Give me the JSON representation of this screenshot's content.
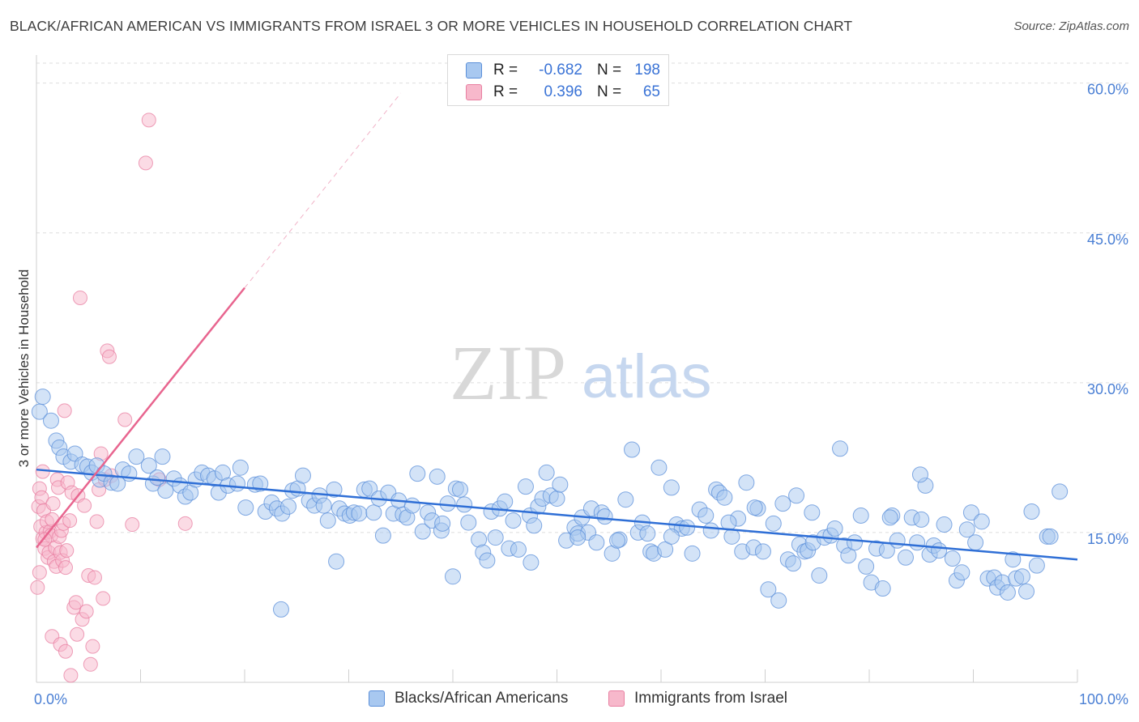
{
  "title": "BLACK/AFRICAN AMERICAN VS IMMIGRANTS FROM ISRAEL 3 OR MORE VEHICLES IN HOUSEHOLD CORRELATION CHART",
  "source": "Source: ZipAtlas.com",
  "watermark": {
    "zip": "ZIP",
    "atlas": "atlas"
  },
  "colors": {
    "blue_fill": "#a8c8f0",
    "blue_stroke": "#5b8fd9",
    "blue_line": "#2f6fd6",
    "pink_fill": "#f7b8cb",
    "pink_stroke": "#e87fa1",
    "pink_line": "#e8658f",
    "tick_label": "#4a7fd4",
    "grid": "#dddddd"
  },
  "legend": {
    "rows": [
      {
        "r_label": "R =",
        "r_value": "-0.682",
        "n_label": "N =",
        "n_value": "198"
      },
      {
        "r_label": "R =",
        "r_value": "0.396",
        "n_label": "N =",
        "n_value": "65"
      }
    ]
  },
  "chart_data": {
    "type": "scatter",
    "title": "BLACK/AFRICAN AMERICAN VS IMMIGRANTS FROM ISRAEL 3 OR MORE VEHICLES IN HOUSEHOLD CORRELATION CHART",
    "xlabel": "",
    "ylabel": "3 or more Vehicles in Household",
    "xlim": [
      0,
      100
    ],
    "ylim": [
      0,
      62
    ],
    "x_tick_labels": [
      "0.0%",
      "100.0%"
    ],
    "y_ticks": [
      15,
      30,
      45,
      60
    ],
    "y_tick_labels": [
      "15.0%",
      "30.0%",
      "45.0%",
      "60.0%"
    ],
    "grid": true,
    "legend_position": "bottom",
    "series": [
      {
        "name": "Blacks/African Americans",
        "trend": {
          "x": [
            0,
            100
          ],
          "y": [
            21.3,
            12.3
          ]
        },
        "points": [
          [
            0.3,
            27.1
          ],
          [
            0.6,
            28.6
          ],
          [
            1.4,
            26.2
          ],
          [
            1.9,
            24.2
          ],
          [
            2.2,
            23.5
          ],
          [
            2.6,
            22.6
          ],
          [
            3.3,
            22.1
          ],
          [
            3.7,
            22.9
          ],
          [
            4.4,
            21.8
          ],
          [
            4.9,
            21.6
          ],
          [
            5.3,
            21.0
          ],
          [
            5.8,
            21.7
          ],
          [
            6.1,
            20.3
          ],
          [
            6.5,
            20.9
          ],
          [
            7.2,
            20.0
          ],
          [
            7.8,
            19.9
          ],
          [
            8.3,
            21.3
          ],
          [
            8.9,
            20.9
          ],
          [
            9.6,
            22.6
          ],
          [
            10.8,
            21.7
          ],
          [
            11.2,
            19.9
          ],
          [
            12.1,
            22.6
          ],
          [
            11.6,
            20.5
          ],
          [
            12.4,
            19.2
          ],
          [
            13.2,
            20.4
          ],
          [
            13.8,
            19.7
          ],
          [
            14.3,
            18.6
          ],
          [
            14.8,
            19.0
          ],
          [
            15.3,
            20.3
          ],
          [
            15.9,
            21.0
          ],
          [
            16.5,
            20.7
          ],
          [
            17.1,
            20.4
          ],
          [
            17.5,
            19.0
          ],
          [
            17.9,
            21.0
          ],
          [
            18.4,
            19.7
          ],
          [
            19.3,
            19.9
          ],
          [
            19.6,
            21.5
          ],
          [
            20.1,
            17.5
          ],
          [
            21.0,
            19.8
          ],
          [
            21.5,
            19.9
          ],
          [
            22.0,
            17.1
          ],
          [
            22.6,
            18.0
          ],
          [
            23.1,
            17.4
          ],
          [
            23.6,
            16.9
          ],
          [
            24.2,
            17.6
          ],
          [
            24.6,
            19.2
          ],
          [
            25.1,
            19.4
          ],
          [
            25.6,
            20.7
          ],
          [
            26.2,
            18.2
          ],
          [
            26.7,
            17.7
          ],
          [
            27.2,
            18.7
          ],
          [
            27.6,
            17.7
          ],
          [
            28.0,
            16.2
          ],
          [
            28.6,
            19.3
          ],
          [
            29.1,
            17.4
          ],
          [
            29.6,
            16.9
          ],
          [
            30.1,
            16.7
          ],
          [
            30.5,
            17.0
          ],
          [
            31.0,
            16.9
          ],
          [
            31.5,
            19.3
          ],
          [
            32.0,
            19.4
          ],
          [
            32.4,
            17.0
          ],
          [
            32.9,
            18.4
          ],
          [
            33.3,
            14.7
          ],
          [
            33.8,
            19.0
          ],
          [
            34.3,
            16.9
          ],
          [
            34.8,
            18.2
          ],
          [
            35.2,
            16.8
          ],
          [
            35.6,
            16.5
          ],
          [
            36.1,
            17.7
          ],
          [
            36.6,
            20.9
          ],
          [
            37.1,
            15.1
          ],
          [
            37.6,
            17.0
          ],
          [
            38.0,
            16.2
          ],
          [
            38.5,
            20.6
          ],
          [
            38.9,
            15.2
          ],
          [
            39.5,
            17.9
          ],
          [
            40.3,
            19.4
          ],
          [
            40.7,
            19.3
          ],
          [
            41.1,
            17.8
          ],
          [
            41.5,
            16.0
          ],
          [
            42.5,
            14.3
          ],
          [
            42.9,
            13.0
          ],
          [
            43.3,
            12.2
          ],
          [
            43.7,
            17.1
          ],
          [
            44.1,
            14.5
          ],
          [
            44.5,
            17.4
          ],
          [
            45.0,
            18.1
          ],
          [
            45.4,
            13.4
          ],
          [
            45.8,
            16.2
          ],
          [
            46.3,
            13.3
          ],
          [
            47.0,
            19.6
          ],
          [
            47.4,
            16.7
          ],
          [
            47.8,
            15.7
          ],
          [
            48.2,
            17.6
          ],
          [
            48.6,
            18.4
          ],
          [
            49.0,
            21.0
          ],
          [
            49.4,
            18.7
          ],
          [
            50.0,
            18.4
          ],
          [
            50.3,
            19.8
          ],
          [
            50.9,
            14.2
          ],
          [
            51.7,
            15.5
          ],
          [
            52.0,
            14.9
          ],
          [
            52.4,
            16.5
          ],
          [
            53.0,
            15.0
          ],
          [
            53.3,
            17.4
          ],
          [
            53.8,
            14.0
          ],
          [
            54.3,
            17.0
          ],
          [
            54.6,
            16.6
          ],
          [
            55.3,
            12.9
          ],
          [
            56.0,
            14.3
          ],
          [
            56.6,
            18.3
          ],
          [
            57.2,
            23.3
          ],
          [
            57.8,
            15.0
          ],
          [
            58.2,
            16.0
          ],
          [
            58.7,
            14.9
          ],
          [
            59.0,
            13.1
          ],
          [
            59.3,
            12.9
          ],
          [
            59.8,
            21.5
          ],
          [
            60.4,
            13.3
          ],
          [
            61.0,
            19.5
          ],
          [
            61.5,
            15.8
          ],
          [
            62.0,
            15.4
          ],
          [
            62.5,
            15.5
          ],
          [
            63.0,
            12.9
          ],
          [
            63.7,
            17.3
          ],
          [
            64.3,
            16.7
          ],
          [
            64.8,
            15.2
          ],
          [
            65.3,
            19.3
          ],
          [
            65.6,
            19.0
          ],
          [
            66.1,
            18.5
          ],
          [
            66.8,
            14.6
          ],
          [
            67.4,
            16.4
          ],
          [
            67.8,
            13.1
          ],
          [
            68.2,
            20.0
          ],
          [
            68.9,
            13.5
          ],
          [
            69.3,
            17.4
          ],
          [
            69.8,
            13.1
          ],
          [
            70.3,
            9.3
          ],
          [
            70.8,
            15.9
          ],
          [
            71.3,
            8.2
          ],
          [
            71.7,
            17.9
          ],
          [
            72.2,
            12.3
          ],
          [
            72.7,
            11.9
          ],
          [
            73.3,
            13.8
          ],
          [
            73.8,
            13.1
          ],
          [
            74.1,
            13.2
          ],
          [
            74.6,
            14.0
          ],
          [
            75.2,
            10.7
          ],
          [
            75.7,
            14.5
          ],
          [
            76.3,
            14.7
          ],
          [
            76.7,
            15.4
          ],
          [
            77.2,
            23.4
          ],
          [
            77.6,
            13.7
          ],
          [
            78.0,
            12.7
          ],
          [
            78.6,
            14.0
          ],
          [
            79.2,
            16.7
          ],
          [
            79.7,
            11.6
          ],
          [
            80.2,
            10.0
          ],
          [
            80.7,
            13.4
          ],
          [
            81.3,
            9.4
          ],
          [
            81.7,
            13.2
          ],
          [
            82.2,
            16.7
          ],
          [
            82.7,
            14.2
          ],
          [
            83.5,
            12.5
          ],
          [
            84.1,
            16.5
          ],
          [
            84.6,
            14.0
          ],
          [
            85.0,
            16.3
          ],
          [
            85.4,
            19.7
          ],
          [
            85.8,
            12.8
          ],
          [
            86.2,
            13.7
          ],
          [
            86.7,
            13.2
          ],
          [
            87.2,
            15.8
          ],
          [
            88.0,
            12.4
          ],
          [
            88.4,
            10.2
          ],
          [
            88.9,
            11.0
          ],
          [
            89.4,
            15.3
          ],
          [
            89.8,
            17.0
          ],
          [
            90.2,
            14.0
          ],
          [
            90.8,
            16.1
          ],
          [
            91.4,
            10.4
          ],
          [
            92.0,
            10.5
          ],
          [
            92.3,
            9.5
          ],
          [
            92.8,
            10.0
          ],
          [
            93.3,
            9.0
          ],
          [
            93.8,
            12.3
          ],
          [
            94.1,
            10.4
          ],
          [
            94.7,
            10.6
          ],
          [
            95.1,
            9.1
          ],
          [
            95.6,
            17.1
          ],
          [
            96.1,
            11.7
          ],
          [
            97.1,
            14.6
          ],
          [
            97.4,
            14.6
          ],
          [
            98.3,
            19.1
          ],
          [
            84.9,
            20.8
          ],
          [
            82.0,
            16.5
          ],
          [
            73.0,
            18.7
          ],
          [
            74.5,
            17.0
          ],
          [
            69.0,
            17.5
          ],
          [
            66.5,
            16.0
          ],
          [
            61.0,
            14.6
          ],
          [
            52.0,
            14.5
          ],
          [
            47.5,
            12.0
          ],
          [
            39.0,
            15.9
          ],
          [
            23.5,
            7.3
          ],
          [
            28.8,
            12.1
          ],
          [
            40.0,
            10.6
          ],
          [
            55.8,
            14.2
          ]
        ]
      },
      {
        "name": "Immigrants from Israel",
        "trend": {
          "x": [
            0,
            20
          ],
          "y": [
            13.5,
            39.5
          ]
        },
        "trend_extended": {
          "x": [
            20,
            35
          ],
          "y": [
            39.5,
            59.0
          ]
        },
        "points": [
          [
            0.2,
            17.6
          ],
          [
            0.3,
            19.4
          ],
          [
            0.4,
            15.6
          ],
          [
            0.5,
            18.5
          ],
          [
            0.6,
            14.4
          ],
          [
            0.7,
            17.2
          ],
          [
            0.8,
            13.4
          ],
          [
            0.9,
            15.0
          ],
          [
            1.0,
            16.1
          ],
          [
            1.1,
            12.5
          ],
          [
            1.2,
            13.0
          ],
          [
            1.3,
            15.1
          ],
          [
            1.4,
            14.7
          ],
          [
            1.5,
            16.3
          ],
          [
            1.6,
            17.9
          ],
          [
            1.7,
            12.1
          ],
          [
            1.8,
            13.5
          ],
          [
            1.9,
            11.6
          ],
          [
            2.0,
            20.3
          ],
          [
            2.1,
            19.5
          ],
          [
            2.2,
            14.6
          ],
          [
            2.3,
            13.0
          ],
          [
            2.4,
            15.2
          ],
          [
            2.5,
            12.2
          ],
          [
            2.6,
            15.9
          ],
          [
            2.7,
            27.2
          ],
          [
            2.8,
            11.5
          ],
          [
            2.9,
            13.2
          ],
          [
            3.0,
            20.0
          ],
          [
            3.2,
            16.2
          ],
          [
            3.4,
            19.0
          ],
          [
            3.6,
            7.5
          ],
          [
            3.8,
            8.0
          ],
          [
            4.0,
            18.7
          ],
          [
            4.2,
            38.5
          ],
          [
            4.4,
            6.3
          ],
          [
            4.6,
            17.7
          ],
          [
            4.8,
            7.1
          ],
          [
            5.0,
            10.7
          ],
          [
            5.2,
            1.8
          ],
          [
            5.4,
            3.6
          ],
          [
            5.6,
            10.5
          ],
          [
            5.8,
            16.1
          ],
          [
            6.0,
            19.3
          ],
          [
            6.2,
            22.9
          ],
          [
            6.4,
            8.4
          ],
          [
            6.6,
            20.3
          ],
          [
            6.8,
            33.2
          ],
          [
            7.0,
            32.6
          ],
          [
            7.2,
            20.7
          ],
          [
            0.1,
            9.5
          ],
          [
            0.3,
            11.0
          ],
          [
            0.8,
            14.3
          ],
          [
            1.5,
            4.6
          ],
          [
            2.3,
            3.8
          ],
          [
            2.8,
            3.1
          ],
          [
            3.3,
            0.7
          ],
          [
            3.9,
            4.8
          ],
          [
            8.5,
            26.3
          ],
          [
            9.2,
            15.8
          ],
          [
            10.5,
            52.0
          ],
          [
            10.8,
            56.3
          ],
          [
            11.8,
            20.3
          ],
          [
            14.3,
            15.9
          ],
          [
            0.6,
            21.1
          ]
        ]
      }
    ]
  },
  "bottom_legend": [
    {
      "label": "Blacks/African Americans"
    },
    {
      "label": "Immigrants from Israel"
    }
  ]
}
